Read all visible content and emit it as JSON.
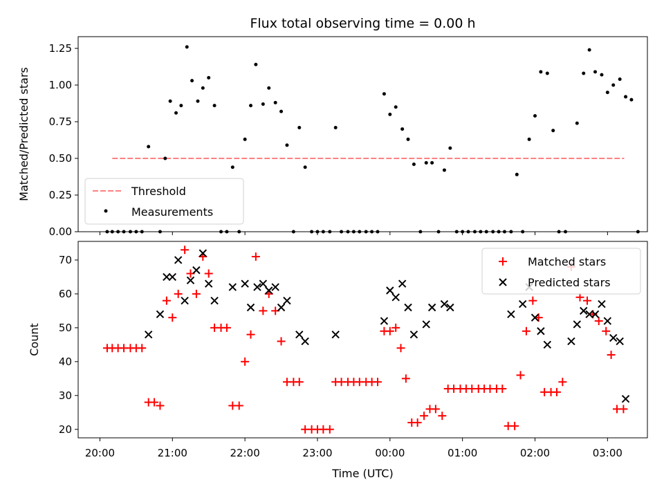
{
  "chart_data": [
    {
      "type": "scatter",
      "title": "Flux total observing time = 0.00 h",
      "xlabel": "",
      "ylabel": "Matched/Predicted stars",
      "ylim": [
        0,
        1.33
      ],
      "yticks": [
        "0.00",
        "0.25",
        "0.50",
        "0.75",
        "1.00",
        "1.25"
      ],
      "legend_position": "lower-left",
      "series": [
        {
          "name": "Threshold",
          "color": "#ff8080",
          "style": "dashed",
          "points": [
            [
              20.17,
              0.5
            ],
            [
              3.23,
              0.5
            ]
          ]
        },
        {
          "name": "Measurements",
          "color": "#000000",
          "points": [
            [
              20.1,
              0
            ],
            [
              20.17,
              0
            ],
            [
              20.25,
              0
            ],
            [
              20.33,
              0
            ],
            [
              20.42,
              0
            ],
            [
              20.5,
              0
            ],
            [
              20.58,
              0
            ],
            [
              20.67,
              0.58
            ],
            [
              20.83,
              0
            ],
            [
              20.9,
              0.5
            ],
            [
              20.97,
              0.89
            ],
            [
              21.05,
              0.81
            ],
            [
              21.12,
              0.86
            ],
            [
              21.2,
              1.26
            ],
            [
              21.27,
              1.03
            ],
            [
              21.35,
              0.89
            ],
            [
              21.42,
              0.98
            ],
            [
              21.5,
              1.05
            ],
            [
              21.58,
              0.86
            ],
            [
              21.67,
              0
            ],
            [
              21.75,
              0
            ],
            [
              21.83,
              0.44
            ],
            [
              21.92,
              0
            ],
            [
              22.0,
              0.63
            ],
            [
              22.08,
              0.86
            ],
            [
              22.15,
              1.14
            ],
            [
              22.25,
              0.87
            ],
            [
              22.33,
              0.98
            ],
            [
              22.42,
              0.88
            ],
            [
              22.5,
              0.82
            ],
            [
              22.58,
              0.59
            ],
            [
              22.67,
              0
            ],
            [
              22.75,
              0.71
            ],
            [
              22.83,
              0.44
            ],
            [
              22.92,
              0
            ],
            [
              23.0,
              0
            ],
            [
              23.08,
              0
            ],
            [
              23.17,
              0
            ],
            [
              23.25,
              0.71
            ],
            [
              23.33,
              0
            ],
            [
              23.42,
              0
            ],
            [
              23.5,
              0
            ],
            [
              23.58,
              0
            ],
            [
              23.67,
              0
            ],
            [
              23.75,
              0
            ],
            [
              23.83,
              0
            ],
            [
              23.92,
              0.94
            ],
            [
              24.0,
              0.8
            ],
            [
              24.08,
              0.85
            ],
            [
              24.17,
              0.7
            ],
            [
              24.25,
              0.63
            ],
            [
              24.33,
              0.46
            ],
            [
              24.42,
              0
            ],
            [
              24.5,
              0.47
            ],
            [
              24.58,
              0.47
            ],
            [
              24.67,
              0
            ],
            [
              24.75,
              0.42
            ],
            [
              24.83,
              0.57
            ],
            [
              24.92,
              0
            ],
            [
              25.0,
              0
            ],
            [
              25.08,
              0
            ],
            [
              25.17,
              0
            ],
            [
              25.25,
              0
            ],
            [
              25.33,
              0
            ],
            [
              25.42,
              0
            ],
            [
              25.5,
              0
            ],
            [
              25.58,
              0
            ],
            [
              25.67,
              0
            ],
            [
              25.75,
              0.39
            ],
            [
              25.83,
              0
            ],
            [
              25.92,
              0.63
            ],
            [
              26.0,
              0.79
            ],
            [
              26.08,
              1.09
            ],
            [
              26.17,
              1.08
            ],
            [
              26.25,
              0.69
            ],
            [
              26.33,
              0
            ],
            [
              26.42,
              0
            ],
            [
              26.58,
              0.74
            ],
            [
              26.67,
              1.08
            ],
            [
              26.75,
              1.24
            ],
            [
              26.83,
              1.09
            ],
            [
              26.92,
              1.07
            ],
            [
              27.0,
              0.95
            ],
            [
              27.08,
              1.0
            ],
            [
              27.17,
              1.04
            ],
            [
              27.25,
              0.92
            ],
            [
              27.33,
              0.9
            ],
            [
              27.42,
              0
            ]
          ]
        }
      ]
    },
    {
      "type": "scatter",
      "title": "",
      "xlabel": "Time (UTC)",
      "ylabel": "Count",
      "ylim": [
        17.5,
        75.5
      ],
      "yticks": [
        "20",
        "30",
        "40",
        "50",
        "60",
        "70"
      ],
      "xticks": [
        "20:00",
        "21:00",
        "22:00",
        "23:00",
        "00:00",
        "01:00",
        "02:00",
        "03:00"
      ],
      "legend_position": "upper-right",
      "series": [
        {
          "name": "Matched stars",
          "color": "#ff0000",
          "marker": "+",
          "points": [
            [
              20.1,
              44
            ],
            [
              20.17,
              44
            ],
            [
              20.25,
              44
            ],
            [
              20.33,
              44
            ],
            [
              20.42,
              44
            ],
            [
              20.5,
              44
            ],
            [
              20.58,
              44
            ],
            [
              20.67,
              28
            ],
            [
              20.75,
              28
            ],
            [
              20.83,
              27
            ],
            [
              20.92,
              58
            ],
            [
              21.0,
              53
            ],
            [
              21.08,
              60
            ],
            [
              21.17,
              73
            ],
            [
              21.25,
              66
            ],
            [
              21.33,
              60
            ],
            [
              21.42,
              71
            ],
            [
              21.5,
              66
            ],
            [
              21.58,
              50
            ],
            [
              21.67,
              50
            ],
            [
              21.75,
              50
            ],
            [
              21.83,
              27
            ],
            [
              21.92,
              27
            ],
            [
              22.0,
              40
            ],
            [
              22.08,
              48
            ],
            [
              22.15,
              71
            ],
            [
              22.25,
              55
            ],
            [
              22.33,
              60
            ],
            [
              22.42,
              55
            ],
            [
              22.5,
              46
            ],
            [
              22.58,
              34
            ],
            [
              22.67,
              34
            ],
            [
              22.75,
              34
            ],
            [
              22.83,
              20
            ],
            [
              22.92,
              20
            ],
            [
              23.0,
              20
            ],
            [
              23.08,
              20
            ],
            [
              23.17,
              20
            ],
            [
              23.25,
              34
            ],
            [
              23.33,
              34
            ],
            [
              23.42,
              34
            ],
            [
              23.5,
              34
            ],
            [
              23.58,
              34
            ],
            [
              23.67,
              34
            ],
            [
              23.75,
              34
            ],
            [
              23.83,
              34
            ],
            [
              23.92,
              49
            ],
            [
              24.0,
              49
            ],
            [
              24.08,
              50
            ],
            [
              24.15,
              44
            ],
            [
              24.22,
              35
            ],
            [
              24.3,
              22
            ],
            [
              24.38,
              22
            ],
            [
              24.47,
              24
            ],
            [
              24.55,
              26
            ],
            [
              24.63,
              26
            ],
            [
              24.72,
              24
            ],
            [
              24.8,
              32
            ],
            [
              24.88,
              32
            ],
            [
              24.97,
              32
            ],
            [
              25.05,
              32
            ],
            [
              25.13,
              32
            ],
            [
              25.22,
              32
            ],
            [
              25.3,
              32
            ],
            [
              25.38,
              32
            ],
            [
              25.47,
              32
            ],
            [
              25.55,
              32
            ],
            [
              25.63,
              21
            ],
            [
              25.72,
              21
            ],
            [
              25.8,
              36
            ],
            [
              25.88,
              49
            ],
            [
              25.97,
              58
            ],
            [
              26.05,
              53
            ],
            [
              26.13,
              31
            ],
            [
              26.22,
              31
            ],
            [
              26.3,
              31
            ],
            [
              26.38,
              34
            ],
            [
              26.5,
              68
            ],
            [
              26.62,
              59
            ],
            [
              26.72,
              58
            ],
            [
              26.8,
              54
            ],
            [
              26.88,
              52
            ],
            [
              26.98,
              49
            ],
            [
              27.05,
              42
            ],
            [
              27.13,
              26
            ],
            [
              27.22,
              26
            ]
          ]
        },
        {
          "name": "Predicted stars",
          "color": "#000000",
          "marker": "x",
          "points": [
            [
              20.67,
              48
            ],
            [
              20.83,
              54
            ],
            [
              20.92,
              65
            ],
            [
              21.0,
              65
            ],
            [
              21.08,
              70
            ],
            [
              21.17,
              58
            ],
            [
              21.25,
              64
            ],
            [
              21.33,
              67
            ],
            [
              21.42,
              72
            ],
            [
              21.5,
              63
            ],
            [
              21.58,
              58
            ],
            [
              21.83,
              62
            ],
            [
              22.0,
              63
            ],
            [
              22.08,
              56
            ],
            [
              22.17,
              62
            ],
            [
              22.25,
              63
            ],
            [
              22.33,
              61
            ],
            [
              22.42,
              62
            ],
            [
              22.5,
              56
            ],
            [
              22.58,
              58
            ],
            [
              22.75,
              48
            ],
            [
              22.83,
              46
            ],
            [
              23.25,
              48
            ],
            [
              23.92,
              52
            ],
            [
              24.0,
              61
            ],
            [
              24.08,
              59
            ],
            [
              24.17,
              63
            ],
            [
              24.25,
              56
            ],
            [
              24.33,
              48
            ],
            [
              24.5,
              51
            ],
            [
              24.58,
              56
            ],
            [
              24.75,
              57
            ],
            [
              24.83,
              56
            ],
            [
              25.67,
              54
            ],
            [
              25.83,
              57
            ],
            [
              25.92,
              62
            ],
            [
              26.0,
              53
            ],
            [
              26.08,
              49
            ],
            [
              26.17,
              45
            ],
            [
              26.5,
              46
            ],
            [
              26.58,
              51
            ],
            [
              26.67,
              55
            ],
            [
              26.75,
              54
            ],
            [
              26.83,
              54
            ],
            [
              26.92,
              57
            ],
            [
              27.0,
              52
            ],
            [
              27.08,
              47
            ],
            [
              27.17,
              46
            ],
            [
              27.25,
              29
            ]
          ]
        }
      ]
    }
  ]
}
